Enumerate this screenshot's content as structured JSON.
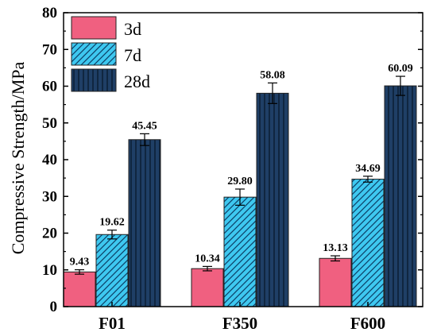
{
  "chart_data": {
    "type": "bar",
    "title": "",
    "xlabel": "",
    "ylabel": "Compressive Strength/MPa",
    "ylim": [
      0,
      80
    ],
    "yticks": [
      0,
      10,
      20,
      30,
      40,
      50,
      60,
      70,
      80
    ],
    "categories": [
      "F01",
      "F350",
      "F600"
    ],
    "grid": false,
    "legend_position": "top-left",
    "series": [
      {
        "name": "3d",
        "values": [
          9.43,
          10.34,
          13.13
        ],
        "labels": [
          "9.43",
          "10.34",
          "13.13"
        ],
        "errors": [
          0.6,
          0.6,
          0.7
        ],
        "color": "#f06080",
        "pattern": "solid"
      },
      {
        "name": "7d",
        "values": [
          19.62,
          29.8,
          34.69
        ],
        "labels": [
          "19.62",
          "29.80",
          "34.69"
        ],
        "errors": [
          1.2,
          2.2,
          0.8
        ],
        "color": "#3ec8f0",
        "pattern": "diagonal"
      },
      {
        "name": "28d",
        "values": [
          45.45,
          58.08,
          60.09
        ],
        "labels": [
          "45.45",
          "58.08",
          "60.09"
        ],
        "errors": [
          1.6,
          2.8,
          2.6
        ],
        "color": "#1f3f66",
        "pattern": "vertical"
      }
    ]
  }
}
